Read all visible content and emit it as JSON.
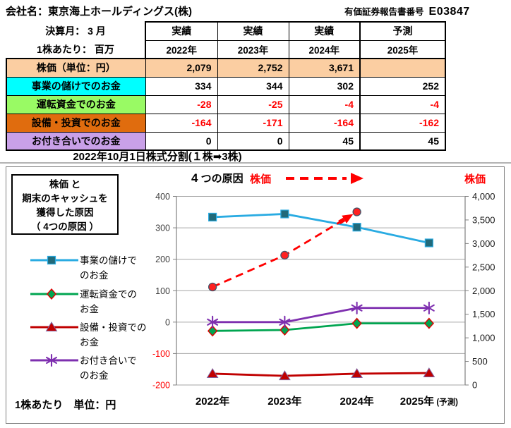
{
  "header": {
    "company": "会社名：東京海上ホールディングス(株)",
    "report_label": "有価証券報告書番号",
    "report_number": "E03847"
  },
  "table": {
    "left_header_lines": [
      "決算月： 3 月",
      "1株あたり： 百万"
    ],
    "status_headers": [
      "実績",
      "実績",
      "実績",
      "予測"
    ],
    "year_headers": [
      "2022年",
      "2023年",
      "2024年",
      "2025年"
    ],
    "rows": [
      {
        "label": "株価（単位：円）",
        "bg": "#FBCEA2",
        "value_bg": "#FBCEA2",
        "values": [
          "2,079",
          "2,752",
          "3,671",
          ""
        ]
      },
      {
        "label": "事業の儲けでのお金",
        "bg": "#00FFFF",
        "value_bg": "#FFFFFF",
        "values": [
          "334",
          "344",
          "302",
          "252"
        ]
      },
      {
        "label": "運転資金でのお金",
        "bg": "#99FA64",
        "value_bg": "#FFFFFF",
        "values": [
          "-28",
          "-25",
          "-4",
          "-4"
        ]
      },
      {
        "label": "設備・投資でのお金",
        "bg": "#E06C0E",
        "value_bg": "#FFFFFF",
        "values": [
          "-164",
          "-171",
          "-164",
          "-162"
        ]
      },
      {
        "label": "お付き合いでのお金",
        "bg": "#C9A0E8",
        "value_bg": "#FFFFFF",
        "values": [
          "0",
          "0",
          "45",
          "45"
        ]
      }
    ],
    "split_note": "2022年10月1日株式分割(１株➡3株)",
    "negative_color": "#FF0000"
  },
  "chart": {
    "title_box_lines": [
      "株価 と",
      "期末のキャッシュを",
      "獲得した原因",
      "（ 4つの原因 ）"
    ],
    "annotation_top": "4 つの原因",
    "price_label_left": "株価",
    "price_label_right": "株価",
    "unit_note": "1株あたり　単位：円",
    "accent_red": "#FF0000",
    "legend": [
      {
        "lines": [
          "事業の儲けで",
          "のお金"
        ],
        "color": "#29ABE2",
        "marker": "square",
        "marker_fill": "#216A7A",
        "marker_stroke": "#29ABE2"
      },
      {
        "lines": [
          "運転資金での",
          "お金"
        ],
        "color": "#00A550",
        "marker": "diamond",
        "marker_fill": "#00A550",
        "marker_stroke": "#E00000"
      },
      {
        "lines": [
          "設備・投資での",
          "お金"
        ],
        "color": "#C00000",
        "marker": "triangle",
        "marker_fill": "#C00000",
        "marker_stroke": "#8064A2"
      },
      {
        "lines": [
          "お付き合いで",
          "のお金"
        ],
        "color": "#7E2FAF",
        "marker": "asterisk",
        "marker_stroke": "#7E2FAF"
      }
    ],
    "legend_item_centers_y": [
      132,
      180,
      227,
      274
    ]
  },
  "chart_data": {
    "type": "line",
    "categories": [
      {
        "label": "2022年",
        "suffix": ""
      },
      {
        "label": "2023年",
        "suffix": ""
      },
      {
        "label": "2024年",
        "suffix": ""
      },
      {
        "label": "2025年",
        "suffix": "(予測)"
      }
    ],
    "left_axis": {
      "min": -200,
      "max": 400,
      "step": 100,
      "tick_labels": [
        "400",
        "300",
        "200",
        "100",
        "0",
        "-100",
        "-200"
      ]
    },
    "right_axis": {
      "min": 0,
      "max": 4000,
      "step": 500,
      "tick_labels": [
        "4,000",
        "3,500",
        "3,000",
        "2,500",
        "2,000",
        "1,500",
        "1,000",
        "500",
        "0"
      ]
    },
    "series": [
      {
        "name": "事業の儲けでのお金",
        "axis": "left",
        "values": [
          334,
          344,
          302,
          252
        ],
        "color": "#29ABE2",
        "marker": "square",
        "marker_fill": "#216A7A",
        "marker_stroke": "#29ABE2",
        "dashed": false
      },
      {
        "name": "運転資金でのお金",
        "axis": "left",
        "values": [
          -28,
          -25,
          -4,
          -4
        ],
        "color": "#00A550",
        "marker": "diamond",
        "marker_fill": "#00A550",
        "marker_stroke": "#E00000",
        "dashed": false
      },
      {
        "name": "設備・投資でのお金",
        "axis": "left",
        "values": [
          -164,
          -171,
          -164,
          -162
        ],
        "color": "#C00000",
        "marker": "triangle",
        "marker_fill": "#C00000",
        "marker_stroke": "#8064A2",
        "dashed": false
      },
      {
        "name": "お付き合いでのお金",
        "axis": "left",
        "values": [
          0,
          0,
          45,
          45
        ],
        "color": "#7E2FAF",
        "marker": "asterisk",
        "marker_stroke": "#7E2FAF",
        "dashed": false
      },
      {
        "name": "株価",
        "axis": "right",
        "values": [
          2079,
          2752,
          3671,
          null
        ],
        "color": "#FF0000",
        "marker": "circle",
        "marker_fill": "#FF2020",
        "marker_stroke": "#44546A",
        "dashed": true,
        "arrow_to_last": true
      }
    ],
    "grid": true,
    "legend_position": "left"
  }
}
